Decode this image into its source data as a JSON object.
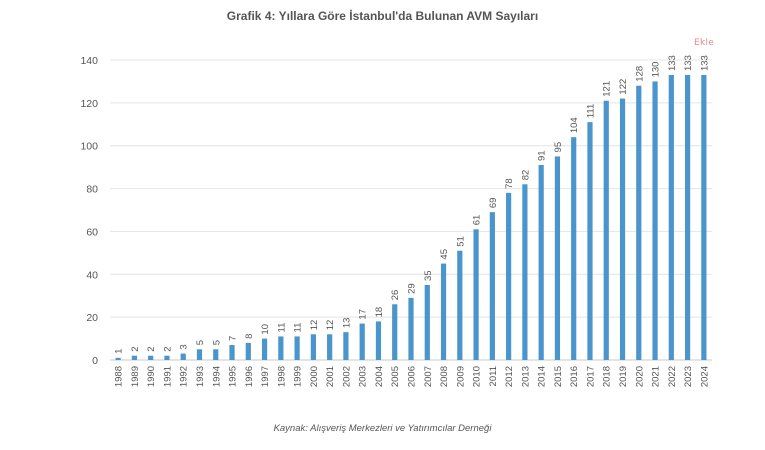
{
  "title": "Grafik 4: Yıllara Göre İstanbul'da Bulunan AVM Sayıları",
  "source": "Kaynak: Alışveriş Merkezleri ve Yatırımcılar Derneği",
  "watermark": "Ekle",
  "colors": {
    "bar": "#4a95cc",
    "grid": "#e4e4e4",
    "axis": "#c8c8c8"
  },
  "chart_data": {
    "type": "bar",
    "categories": [
      "1988",
      "1989",
      "1990",
      "1991",
      "1992",
      "1993",
      "1994",
      "1995",
      "1996",
      "1997",
      "1998",
      "1999",
      "2000",
      "2001",
      "2002",
      "2003",
      "2004",
      "2005",
      "2006",
      "2007",
      "2008",
      "2009",
      "2010",
      "2011",
      "2012",
      "2013",
      "2014",
      "2015",
      "2016",
      "2017",
      "2018",
      "2019",
      "2020",
      "2021",
      "2022",
      "2023",
      "2024"
    ],
    "values": [
      1,
      2,
      2,
      2,
      3,
      5,
      5,
      7,
      8,
      10,
      11,
      11,
      12,
      12,
      13,
      17,
      18,
      26,
      29,
      35,
      45,
      51,
      61,
      69,
      78,
      82,
      91,
      95,
      104,
      111,
      121,
      122,
      128,
      130,
      133,
      133,
      133
    ],
    "ylim": [
      0,
      140
    ],
    "yticks": [
      0,
      20,
      40,
      60,
      80,
      100,
      120,
      140
    ],
    "grid": true,
    "data_labels": true
  }
}
